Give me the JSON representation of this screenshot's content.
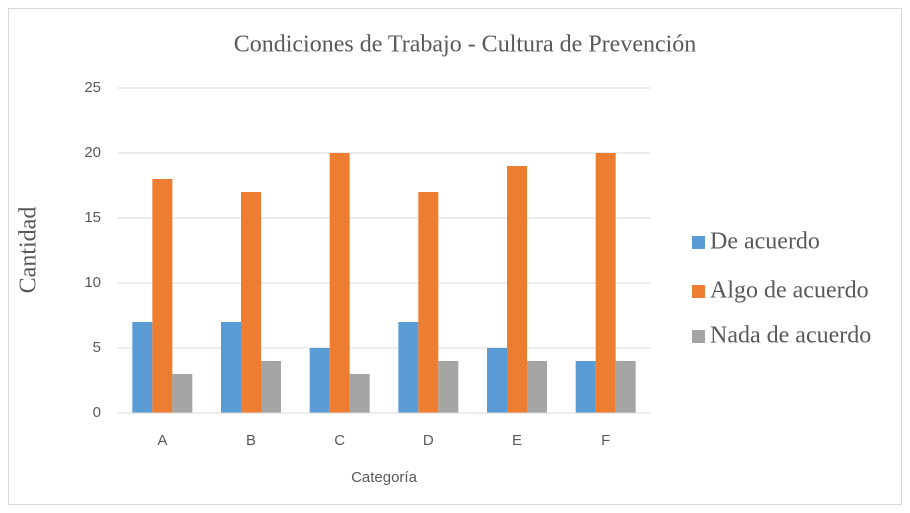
{
  "chart_data": {
    "type": "bar",
    "title": "Condiciones de Trabajo - Cultura de Prevención",
    "x_label": "Categoría",
    "y_label": "Cantidad",
    "categories": [
      "A",
      "B",
      "C",
      "D",
      "E",
      "F"
    ],
    "series": [
      {
        "name": "De acuerdo",
        "color": "#5b9bd5",
        "values": [
          7,
          7,
          5,
          7,
          5,
          4
        ]
      },
      {
        "name": "Algo de acuerdo",
        "color": "#ed7d31",
        "values": [
          18,
          17,
          20,
          17,
          19,
          20
        ]
      },
      {
        "name": "Nada de acuerdo",
        "color": "#a5a5a5",
        "values": [
          3,
          4,
          3,
          4,
          4,
          4
        ]
      }
    ],
    "ylim": [
      0,
      25
    ],
    "yticks": [
      0,
      5,
      10,
      15,
      20,
      25
    ],
    "grid": true,
    "legend": "right"
  }
}
